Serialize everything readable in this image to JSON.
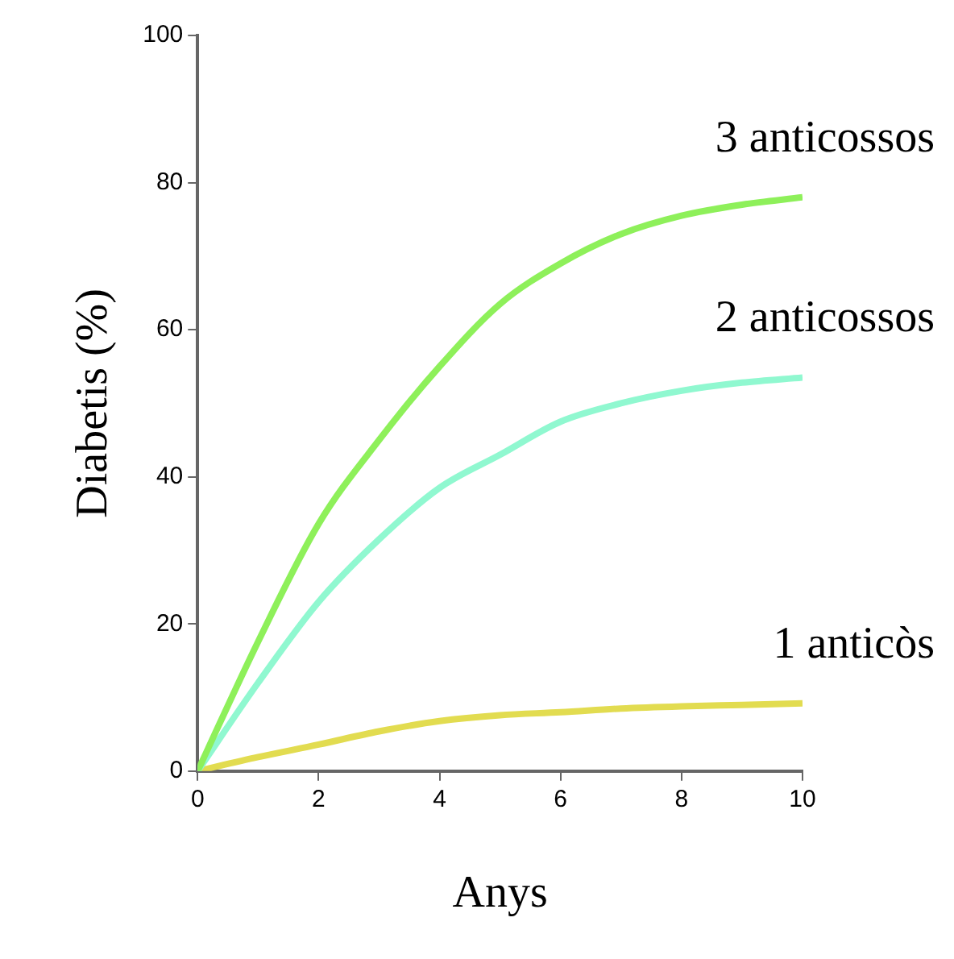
{
  "chart_data": {
    "type": "line",
    "xlabel": "Anys",
    "ylabel": "Diabetis (%)",
    "x": [
      0,
      1,
      2,
      3,
      4,
      5,
      6,
      7,
      8,
      9,
      10
    ],
    "series": [
      {
        "name": "3 anticossos",
        "color": "#8ef05a",
        "values": [
          0,
          17.6,
          33.6,
          45,
          55,
          63.5,
          69,
          73,
          75.5,
          77,
          78
        ]
      },
      {
        "name": "2 anticossos",
        "color": "#90f8d0",
        "values": [
          0,
          12,
          23,
          31.5,
          38.5,
          43,
          47.5,
          50,
          51.7,
          52.8,
          53.5
        ]
      },
      {
        "name": "1 anticòs",
        "color": "#e2dc50",
        "values": [
          0,
          1.9,
          3.6,
          5.4,
          6.8,
          7.6,
          8,
          8.5,
          8.8,
          9,
          9.2
        ]
      }
    ],
    "xlim": [
      0,
      10
    ],
    "xticks": [
      0,
      2,
      4,
      6,
      8,
      10
    ],
    "ylim": [
      0,
      100
    ],
    "yticks": [
      0,
      20,
      40,
      60,
      80,
      100
    ]
  }
}
